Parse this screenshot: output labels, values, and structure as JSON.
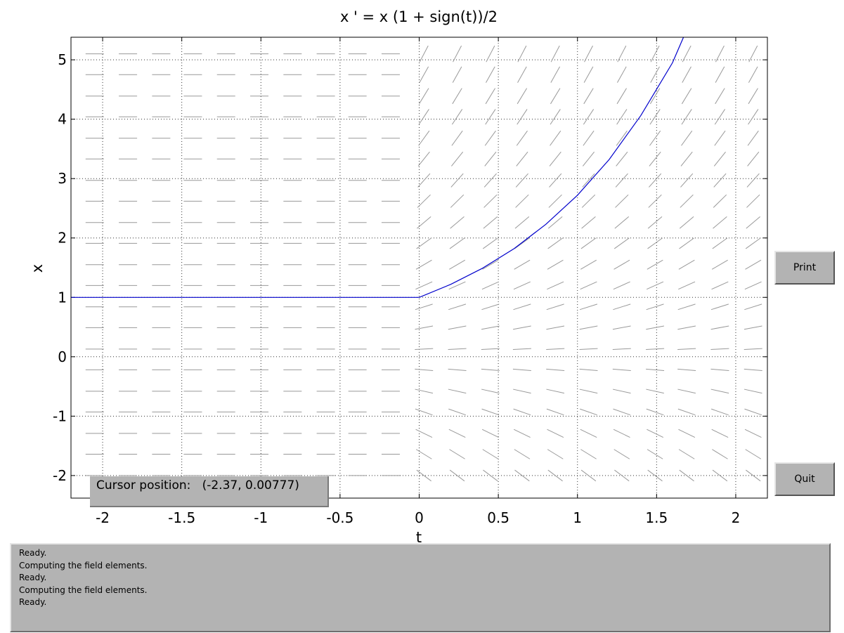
{
  "window": {
    "print_label": "Print",
    "quit_label": "Quit",
    "cursor_label": "Cursor position:",
    "cursor_value": "(-2.37, 0.00777)",
    "messages": [
      "Ready.",
      "Computing the field elements.",
      "Ready.",
      "Computing the field elements.",
      "Ready."
    ]
  },
  "chart_data": {
    "type": "line",
    "title": "x ' = x (1 + sign(t))/2",
    "xlabel": "t",
    "ylabel": "x",
    "xlim": [
      -2.2,
      2.2
    ],
    "ylim": [
      -2.38,
      5.38
    ],
    "xticks": [
      -2,
      -1.5,
      -1,
      -0.5,
      0,
      0.5,
      1,
      1.5,
      2
    ],
    "xtick_labels": [
      "-2",
      "-1.5",
      "-1",
      "-0.5",
      "0",
      "0.5",
      "1",
      "1.5",
      "2"
    ],
    "yticks": [
      -2,
      -1,
      0,
      1,
      2,
      3,
      4,
      5
    ],
    "ytick_labels": [
      "-2",
      "-1",
      "0",
      "1",
      "2",
      "3",
      "4",
      "5"
    ],
    "grid": true,
    "colors": {
      "solution": "#0000cc",
      "field": "#999999",
      "grid": "#333333"
    },
    "direction_field": {
      "t_values": [
        -2.05,
        -1.84,
        -1.63,
        -1.43,
        -1.22,
        -1.01,
        -0.8,
        -0.59,
        -0.39,
        -0.18,
        0.03,
        0.24,
        0.45,
        0.65,
        0.86,
        1.07,
        1.28,
        1.49,
        1.69,
        1.9,
        2.11
      ],
      "x_values": [
        -2.0,
        -1.64,
        -1.29,
        -0.93,
        -0.58,
        -0.22,
        0.13,
        0.49,
        0.84,
        1.2,
        1.55,
        1.91,
        2.26,
        2.62,
        2.97,
        3.33,
        3.68,
        4.04,
        4.39,
        4.75,
        5.1
      ]
    },
    "series": [
      {
        "x": [
          -2.2,
          -1.5,
          -1.0,
          -0.5,
          0,
          0.2,
          0.4,
          0.6,
          0.8,
          1.0,
          1.2,
          1.4,
          1.6,
          1.67
        ],
        "y": [
          1,
          1,
          1,
          1,
          1,
          1.22,
          1.49,
          1.82,
          2.23,
          2.72,
          3.32,
          4.06,
          4.95,
          5.38
        ]
      }
    ]
  }
}
